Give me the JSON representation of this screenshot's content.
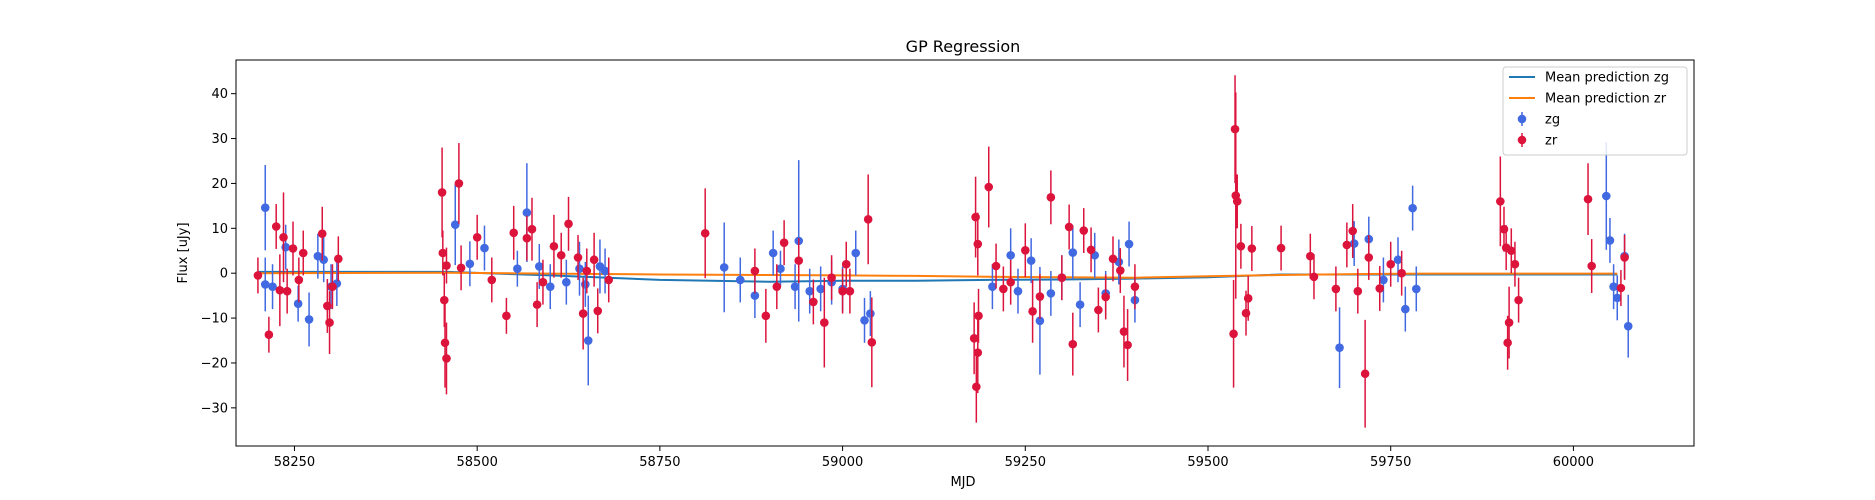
{
  "chart_data": {
    "type": "scatter",
    "title": "GP Regression",
    "xlabel": "MJD",
    "ylabel": "Flux [uJy]",
    "xlim": [
      58170,
      60165
    ],
    "ylim": [
      -38.5,
      47.5
    ],
    "xticks": [
      58250,
      58500,
      58750,
      59000,
      59250,
      59500,
      59750,
      60000
    ],
    "yticks": [
      -30,
      -20,
      -10,
      0,
      10,
      20,
      30,
      40
    ],
    "legend": {
      "placement": "top-right",
      "entries": [
        {
          "label": "Mean prediction zg",
          "kind": "line",
          "color": "#1f77b4"
        },
        {
          "label": "Mean prediction zr",
          "kind": "line",
          "color": "#ff7f0e"
        },
        {
          "label": "zg",
          "kind": "errorbar",
          "color": "#4169e1"
        },
        {
          "label": "zr",
          "kind": "errorbar",
          "color": "#dc143c"
        }
      ]
    },
    "lines": [
      {
        "name": "Mean prediction zg",
        "color": "#1f77b4",
        "x": [
          58200,
          58460,
          58600,
          58750,
          58900,
          59000,
          59100,
          59200,
          59300,
          59400,
          59500,
          59600,
          59700,
          59800,
          59950,
          60060
        ],
        "y": [
          0.3,
          0.3,
          -0.5,
          -1.5,
          -1.9,
          -1.7,
          -1.7,
          -1.5,
          -1.4,
          -1.2,
          -0.9,
          -0.3,
          -0.3,
          -0.3,
          -0.3,
          -0.3
        ]
      },
      {
        "name": "Mean prediction zr",
        "color": "#ff7f0e",
        "x": [
          58200,
          58460,
          58600,
          58750,
          58900,
          59000,
          59100,
          59200,
          59300,
          59400,
          59500,
          59600,
          59700,
          59800,
          59950,
          60060
        ],
        "y": [
          0.0,
          0.1,
          -0.1,
          -0.3,
          -0.4,
          -0.5,
          -0.6,
          -0.8,
          -0.9,
          -1.0,
          -0.7,
          -0.4,
          -0.2,
          -0.1,
          -0.1,
          -0.1
        ]
      }
    ],
    "series": [
      {
        "name": "zg",
        "color": "#4169e1",
        "points": [
          [
            58210,
            14.6,
            9.5
          ],
          [
            58210,
            -2.5,
            6
          ],
          [
            58220,
            -3,
            5
          ],
          [
            58238,
            5.8,
            5
          ],
          [
            58255,
            -6.8,
            4
          ],
          [
            58270,
            -10.3,
            6
          ],
          [
            58282,
            3.8,
            5
          ],
          [
            58290,
            3,
            5
          ],
          [
            58300,
            -3,
            5
          ],
          [
            58308,
            -2.3,
            5
          ],
          [
            58470,
            10.8,
            9
          ],
          [
            58490,
            2.1,
            5
          ],
          [
            58510,
            5.6,
            5
          ],
          [
            58555,
            1,
            4
          ],
          [
            58568,
            13.5,
            11
          ],
          [
            58585,
            1.5,
            5
          ],
          [
            58600,
            -3,
            5
          ],
          [
            58622,
            -2,
            5
          ],
          [
            58640,
            1,
            6
          ],
          [
            58648,
            -2.5,
            5
          ],
          [
            58652,
            -15,
            10
          ],
          [
            58668,
            1.5,
            6
          ],
          [
            58675,
            0.5,
            5
          ],
          [
            58838,
            1.3,
            10
          ],
          [
            58860,
            -1.5,
            5
          ],
          [
            58880,
            -5,
            5
          ],
          [
            58905,
            4.5,
            5
          ],
          [
            58915,
            1,
            4
          ],
          [
            58935,
            -3,
            5
          ],
          [
            58940,
            7.2,
            18
          ],
          [
            58955,
            -4,
            5
          ],
          [
            58970,
            -3.5,
            5
          ],
          [
            58985,
            -2,
            5
          ],
          [
            59000,
            -3.5,
            5
          ],
          [
            59018,
            4.5,
            5
          ],
          [
            59030,
            -10.5,
            5
          ],
          [
            59038,
            -9,
            5
          ],
          [
            59205,
            -3,
            5
          ],
          [
            59230,
            4,
            6
          ],
          [
            59240,
            -4,
            5
          ],
          [
            59258,
            2.8,
            5
          ],
          [
            59270,
            -10.6,
            12
          ],
          [
            59285,
            -4.5,
            5
          ],
          [
            59300,
            -1,
            5
          ],
          [
            59315,
            4.6,
            6
          ],
          [
            59325,
            -7,
            5
          ],
          [
            59345,
            4,
            5
          ],
          [
            59360,
            -4.5,
            5
          ],
          [
            59378,
            2.5,
            5
          ],
          [
            59392,
            6.5,
            5
          ],
          [
            59400,
            -6,
            5
          ],
          [
            59680,
            -16.6,
            9
          ],
          [
            59700,
            6.6,
            5
          ],
          [
            59720,
            7.6,
            5
          ],
          [
            59740,
            -1.5,
            5
          ],
          [
            59760,
            3,
            5
          ],
          [
            59770,
            -8,
            5
          ],
          [
            59780,
            14.5,
            5
          ],
          [
            59785,
            -3.5,
            5
          ],
          [
            60045,
            17.2,
            12
          ],
          [
            60050,
            7.3,
            5
          ],
          [
            60055,
            -3,
            5
          ],
          [
            60060,
            -5.5,
            5
          ],
          [
            60070,
            3.8,
            5
          ],
          [
            60075,
            -11.8,
            7
          ]
        ]
      },
      {
        "name": "zr",
        "color": "#dc143c",
        "points": [
          [
            58200,
            -0.5,
            4
          ],
          [
            58215,
            -13.7,
            4
          ],
          [
            58225,
            10.4,
            5
          ],
          [
            58230,
            -3.8,
            8
          ],
          [
            58235,
            8,
            10
          ],
          [
            58240,
            -4,
            5
          ],
          [
            58248,
            5.5,
            6
          ],
          [
            58256,
            -1.5,
            5
          ],
          [
            58262,
            4.5,
            5
          ],
          [
            58288,
            8.8,
            6
          ],
          [
            58295,
            -7.3,
            6
          ],
          [
            58298,
            -11,
            7
          ],
          [
            58302,
            -3,
            5
          ],
          [
            58310,
            3.2,
            5
          ],
          [
            58452,
            18,
            10
          ],
          [
            58453,
            4.5,
            5
          ],
          [
            58455,
            -6,
            6
          ],
          [
            58456,
            -15.5,
            10
          ],
          [
            58458,
            -19,
            8
          ],
          [
            58458,
            1.7,
            4
          ],
          [
            58475,
            20,
            9
          ],
          [
            58478,
            1.2,
            5
          ],
          [
            58500,
            8,
            5
          ],
          [
            58520,
            -1.5,
            5
          ],
          [
            58540,
            -9.5,
            4
          ],
          [
            58550,
            9,
            6
          ],
          [
            58568,
            7.8,
            5
          ],
          [
            58575,
            9.8,
            7
          ],
          [
            58582,
            -7,
            5
          ],
          [
            58590,
            -2,
            5
          ],
          [
            58605,
            6,
            7
          ],
          [
            58615,
            4,
            5
          ],
          [
            58625,
            11,
            6
          ],
          [
            58638,
            3.5,
            5
          ],
          [
            58645,
            -9,
            8
          ],
          [
            58650,
            0.5,
            5
          ],
          [
            58660,
            3,
            6
          ],
          [
            58665,
            -8.4,
            5
          ],
          [
            58680,
            -1.5,
            5
          ],
          [
            58812,
            8.9,
            10
          ],
          [
            58880,
            0.5,
            5
          ],
          [
            58895,
            -9.5,
            6
          ],
          [
            58910,
            -3,
            5
          ],
          [
            58920,
            6.8,
            5
          ],
          [
            58940,
            2.8,
            5
          ],
          [
            58960,
            -6.4,
            5
          ],
          [
            58975,
            -11,
            10
          ],
          [
            58985,
            -1,
            5
          ],
          [
            59000,
            -4,
            5
          ],
          [
            59005,
            2,
            5
          ],
          [
            59010,
            -4,
            5
          ],
          [
            59035,
            12,
            10
          ],
          [
            59040,
            -15.4,
            10
          ],
          [
            59180,
            -14.5,
            8
          ],
          [
            59182,
            12.5,
            9
          ],
          [
            59183,
            -25.3,
            8
          ],
          [
            59185,
            -17.7,
            9
          ],
          [
            59185,
            6.5,
            7
          ],
          [
            59186,
            -9.5,
            6
          ],
          [
            59200,
            19.2,
            9
          ],
          [
            59210,
            1.6,
            5
          ],
          [
            59220,
            -3.5,
            5
          ],
          [
            59230,
            -2,
            5
          ],
          [
            59250,
            5.1,
            6
          ],
          [
            59260,
            -8.5,
            7
          ],
          [
            59270,
            -5.2,
            5
          ],
          [
            59285,
            16.9,
            6
          ],
          [
            59300,
            -1,
            5
          ],
          [
            59310,
            10.3,
            5
          ],
          [
            59315,
            -15.8,
            7
          ],
          [
            59330,
            9.5,
            5
          ],
          [
            59340,
            5.2,
            5
          ],
          [
            59350,
            -8.2,
            5
          ],
          [
            59360,
            -5.3,
            5
          ],
          [
            59370,
            3.2,
            5
          ],
          [
            59380,
            0.6,
            5
          ],
          [
            59385,
            -13,
            8
          ],
          [
            59390,
            -16,
            8
          ],
          [
            59400,
            -3,
            5
          ],
          [
            59535,
            -13.5,
            12
          ],
          [
            59537,
            32.1,
            12
          ],
          [
            59538,
            17.3,
            23
          ],
          [
            59540,
            16,
            6
          ],
          [
            59545,
            6,
            5
          ],
          [
            59552,
            -8.9,
            5
          ],
          [
            59555,
            -5.6,
            5
          ],
          [
            59560,
            5.5,
            5
          ],
          [
            59600,
            5.6,
            5
          ],
          [
            59640,
            3.8,
            5
          ],
          [
            59645,
            -0.8,
            5
          ],
          [
            59675,
            -3.5,
            5
          ],
          [
            59690,
            6.3,
            5
          ],
          [
            59698,
            9.4,
            6
          ],
          [
            59705,
            -4,
            5
          ],
          [
            59715,
            -22.4,
            12
          ],
          [
            59720,
            3.5,
            5
          ],
          [
            59735,
            -3.4,
            5
          ],
          [
            59750,
            2,
            5
          ],
          [
            59765,
            0,
            5
          ],
          [
            59900,
            16,
            10
          ],
          [
            59905,
            9.8,
            5
          ],
          [
            59908,
            5.7,
            5
          ],
          [
            59910,
            -15.5,
            6
          ],
          [
            59912,
            -11,
            8
          ],
          [
            59915,
            5,
            5
          ],
          [
            59920,
            2,
            5
          ],
          [
            59925,
            -6,
            5
          ],
          [
            60020,
            16.5,
            8
          ],
          [
            60025,
            1.6,
            6
          ],
          [
            60065,
            -3.3,
            4
          ],
          [
            60070,
            3.5,
            5
          ]
        ]
      }
    ]
  }
}
